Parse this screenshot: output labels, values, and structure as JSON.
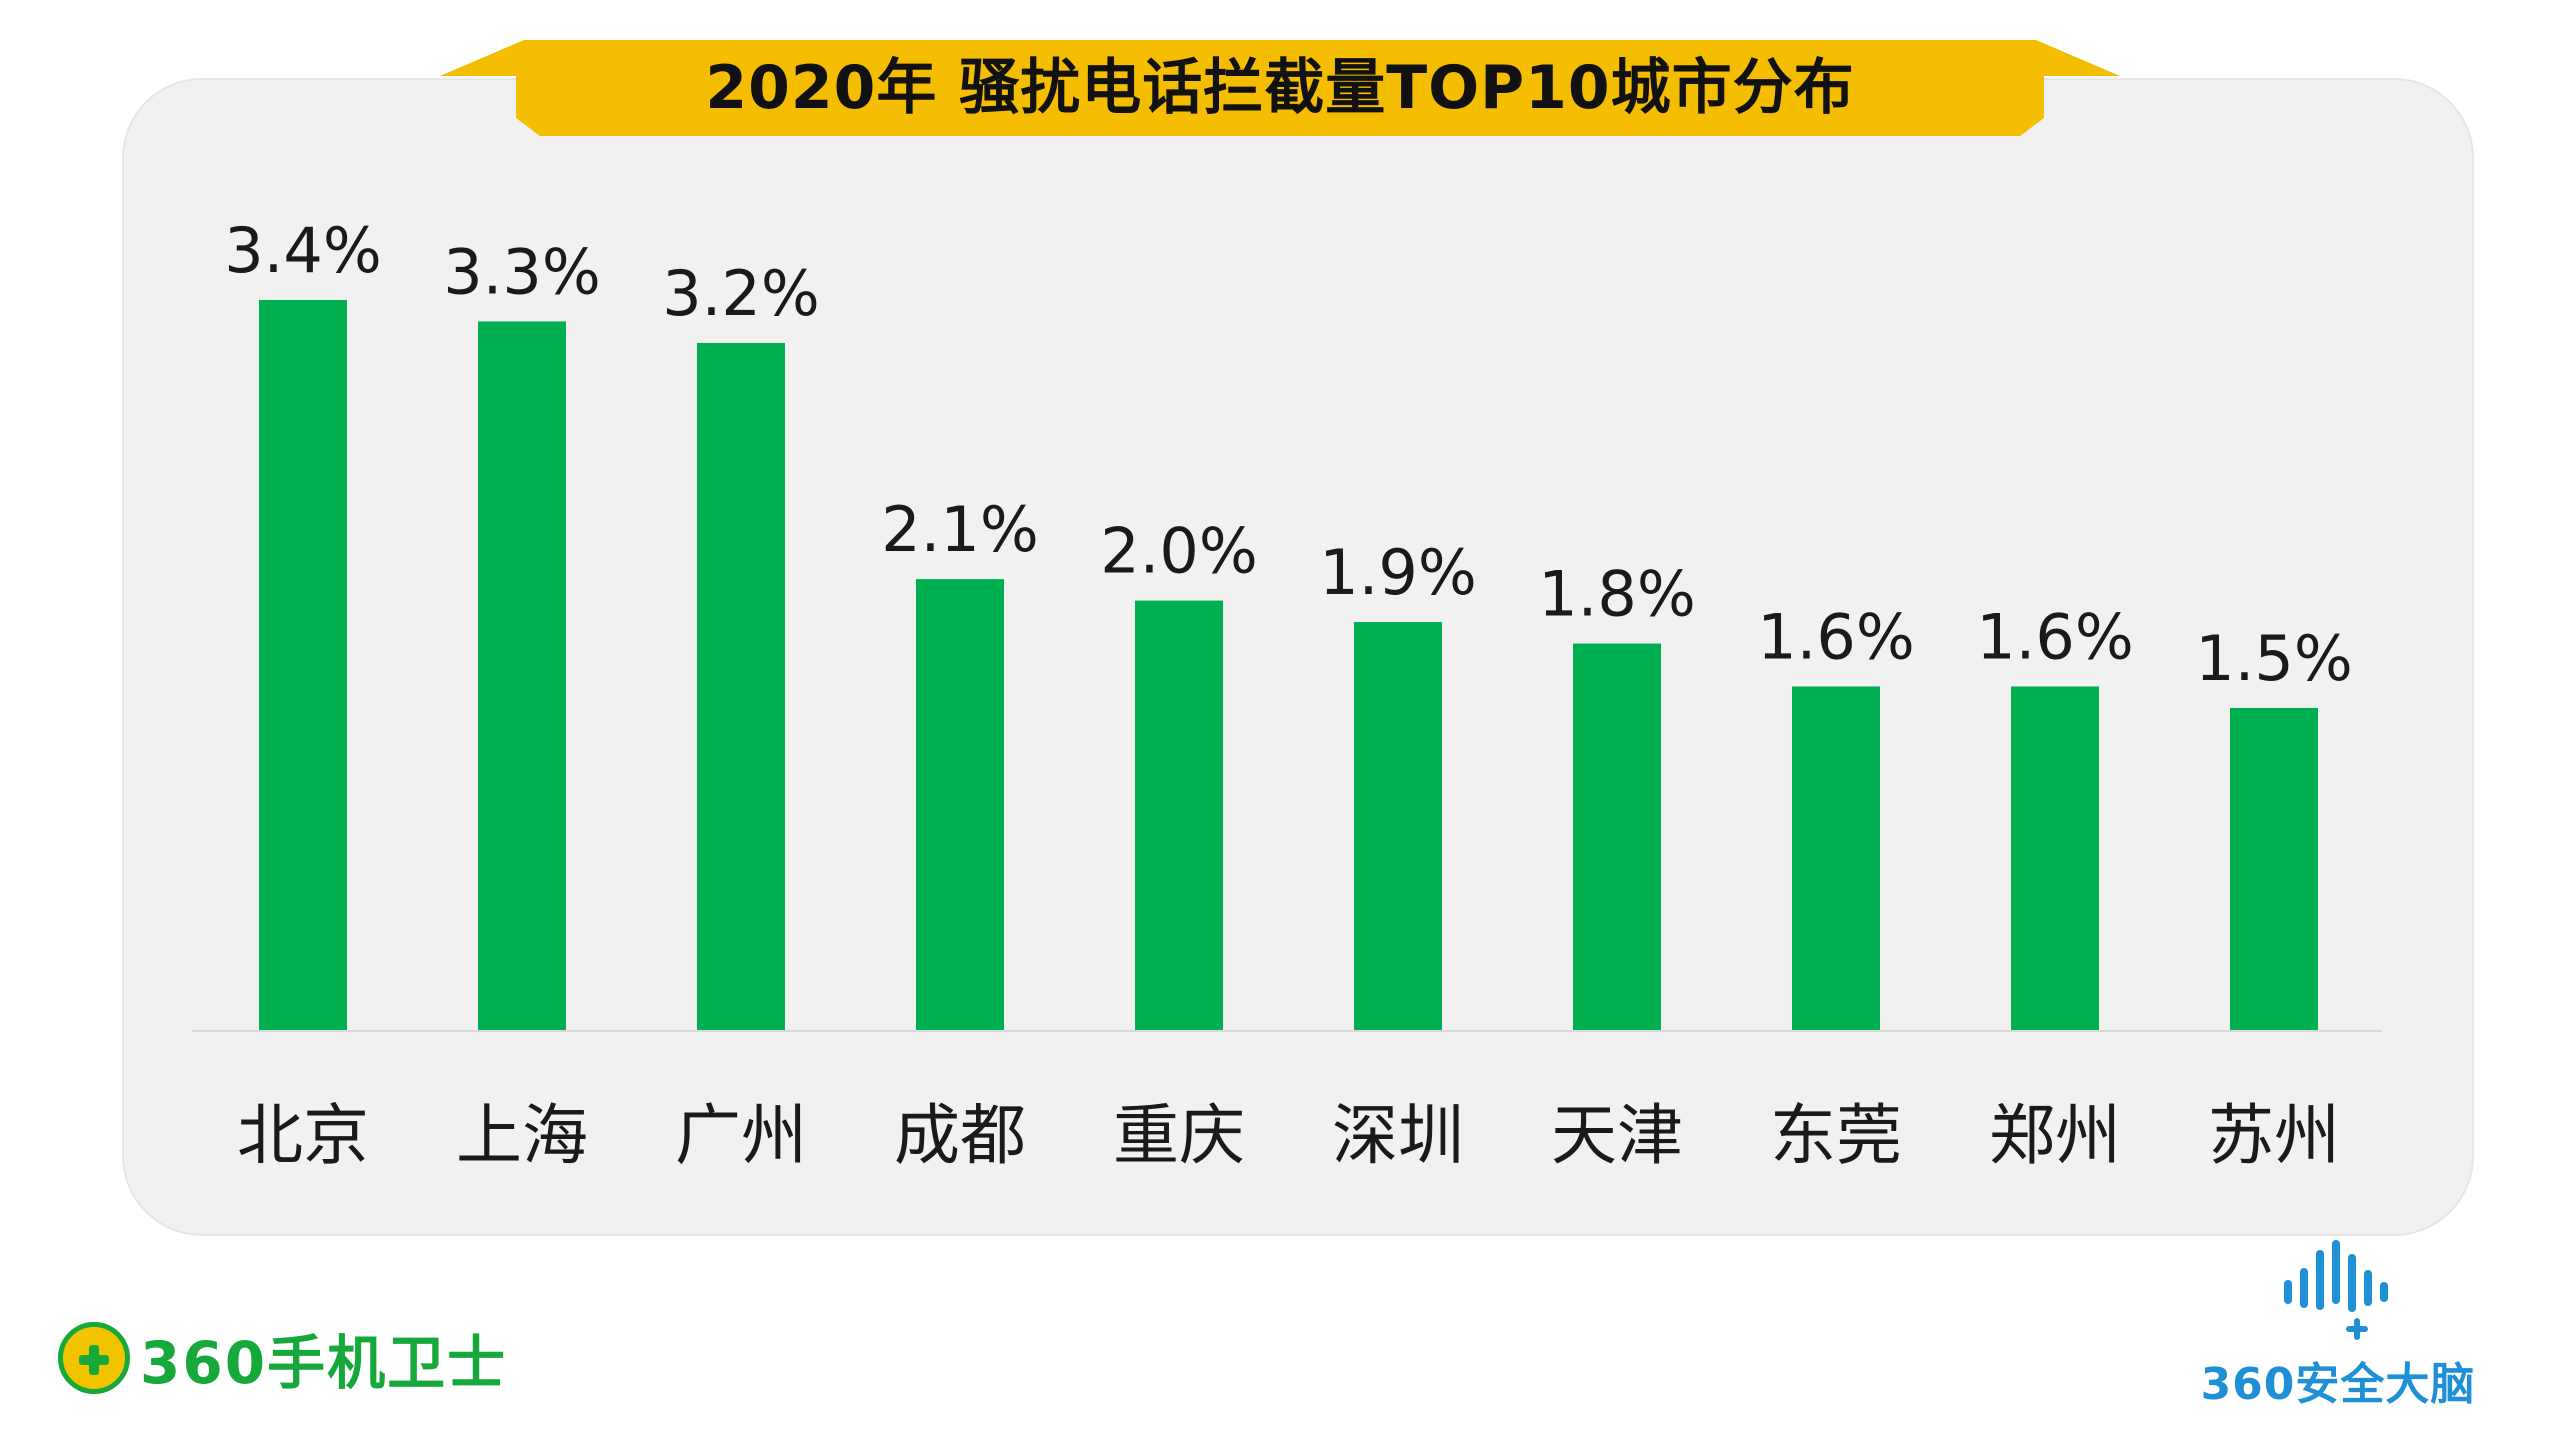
{
  "title": "2020年 骚扰电话拦截量TOP10城市分布",
  "colors": {
    "bar": "#00b050",
    "title_banner": "#f5bd00",
    "panel": "#f1f1f1",
    "baseline": "#d9d9d9",
    "label_text": "#1a1a1a"
  },
  "chart_data": {
    "type": "bar",
    "title": "2020年 骚扰电话拦截量TOP10城市分布",
    "categories": [
      "北京",
      "上海",
      "广州",
      "成都",
      "重庆",
      "深圳",
      "天津",
      "东莞",
      "郑州",
      "苏州"
    ],
    "values": [
      3.4,
      3.3,
      3.2,
      2.1,
      2.0,
      1.9,
      1.8,
      1.6,
      1.6,
      1.5
    ],
    "data_labels": [
      "3.4%",
      "3.3%",
      "3.2%",
      "2.1%",
      "2.0%",
      "1.9%",
      "1.8%",
      "1.6%",
      "1.6%",
      "1.5%"
    ],
    "xlabel": "",
    "ylabel": "",
    "ylim": [
      0,
      3.4
    ],
    "grid": false,
    "legend": "none"
  },
  "logos": {
    "left": {
      "text": "360手机卫士",
      "icon": "plus-badge-icon"
    },
    "right": {
      "text": "360安全大脑",
      "icon": "soundwave-plus-icon"
    }
  }
}
